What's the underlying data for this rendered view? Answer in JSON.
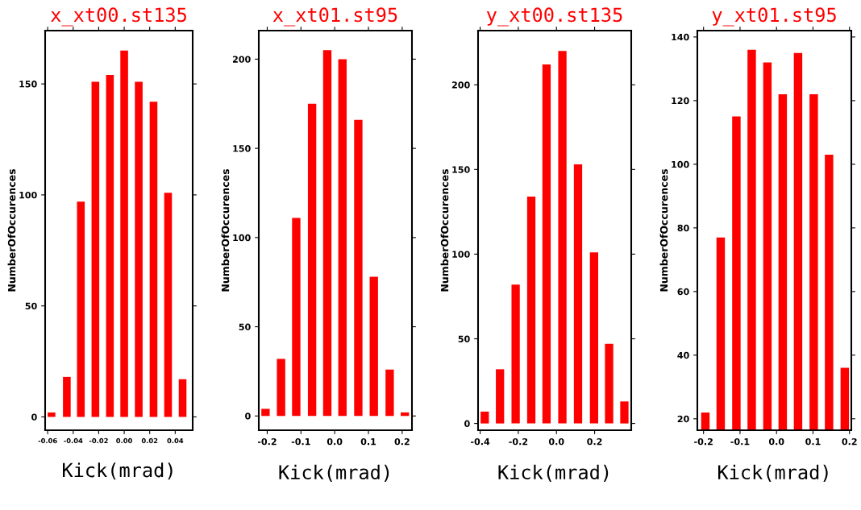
{
  "chart_data": [
    {
      "type": "bar",
      "title": "x_xt00.st135",
      "xlabel": "Kick(mrad)",
      "ylabel": "NumberOfOccurences",
      "x": [
        -0.057,
        -0.045,
        -0.034,
        -0.0226,
        -0.0112,
        0.0,
        0.0114,
        0.023,
        0.0344,
        0.0458
      ],
      "values": [
        2,
        18,
        97,
        151,
        154,
        165,
        151,
        142,
        101,
        17
      ],
      "color": "#ff0000",
      "xlim": [
        -0.062,
        0.0537
      ],
      "xticks": [
        {
          "value": -0.06,
          "label": "-0.06"
        },
        {
          "value": -0.04,
          "label": "-0.04"
        },
        {
          "value": -0.02,
          "label": "-0.02"
        },
        {
          "value": 0.0,
          "label": "0.00"
        },
        {
          "value": 0.02,
          "label": "0.02"
        },
        {
          "value": 0.04,
          "label": "0.04"
        }
      ],
      "ylim": [
        -6,
        174
      ],
      "yticks": [
        0,
        50,
        100,
        150
      ],
      "grid": false,
      "legend": false
    },
    {
      "type": "bar",
      "title": "x_xt01.st95",
      "xlabel": "Kick(mrad)",
      "ylabel": "NumberOfOccurences",
      "x": [
        -0.205,
        -0.159,
        -0.114,
        -0.067,
        -0.022,
        0.023,
        0.07,
        0.116,
        0.163,
        0.208
      ],
      "values": [
        4,
        32,
        111,
        175,
        205,
        200,
        166,
        78,
        26,
        2
      ],
      "color": "#ff0000",
      "xlim": [
        -0.225,
        0.229
      ],
      "xticks": [
        {
          "value": -0.2,
          "label": "-0.2"
        },
        {
          "value": -0.1,
          "label": "-0.1"
        },
        {
          "value": 0.0,
          "label": "0.0"
        },
        {
          "value": 0.1,
          "label": "0.1"
        },
        {
          "value": 0.2,
          "label": "0.2"
        }
      ],
      "ylim": [
        -8,
        216
      ],
      "yticks": [
        0,
        50,
        100,
        150,
        200
      ],
      "grid": false,
      "legend": false
    },
    {
      "type": "bar",
      "title": "y_xt00.st135",
      "xlabel": "Kick(mrad)",
      "ylabel": "NumberOfOccurences",
      "x": [
        -0.376,
        -0.296,
        -0.214,
        -0.132,
        -0.052,
        0.031,
        0.113,
        0.197,
        0.276,
        0.356
      ],
      "values": [
        7,
        32,
        82,
        134,
        212,
        220,
        153,
        101,
        47,
        13
      ],
      "color": "#ff0000",
      "xlim": [
        -0.411,
        0.392
      ],
      "xticks": [
        {
          "value": -0.4,
          "label": "-0.4"
        },
        {
          "value": -0.2,
          "label": "-0.2"
        },
        {
          "value": 0.0,
          "label": "0.0"
        },
        {
          "value": 0.2,
          "label": "0.2"
        }
      ],
      "ylim": [
        -4,
        232
      ],
      "yticks": [
        0,
        50,
        100,
        150,
        200
      ],
      "grid": false,
      "legend": false
    },
    {
      "type": "bar",
      "title": "y_xt01.st95",
      "xlabel": "Kick(mrad)",
      "ylabel": "NumberOfOccurences",
      "x": [
        -0.195,
        -0.153,
        -0.11,
        -0.068,
        -0.025,
        0.017,
        0.059,
        0.102,
        0.144,
        0.187
      ],
      "values": [
        22,
        77,
        115,
        136,
        132,
        122,
        135,
        122,
        103,
        36
      ],
      "color": "#ff0000",
      "xlim": [
        -0.217,
        0.205
      ],
      "xticks": [
        {
          "value": -0.2,
          "label": "-0.2"
        },
        {
          "value": -0.1,
          "label": "-0.1"
        },
        {
          "value": 0.0,
          "label": "0.0"
        },
        {
          "value": 0.1,
          "label": "0.1"
        },
        {
          "value": 0.2,
          "label": "0.2"
        }
      ],
      "ylim": [
        16.4,
        142
      ],
      "yticks": [
        20,
        40,
        60,
        80,
        100,
        120,
        140
      ],
      "grid": false,
      "legend": false
    }
  ]
}
